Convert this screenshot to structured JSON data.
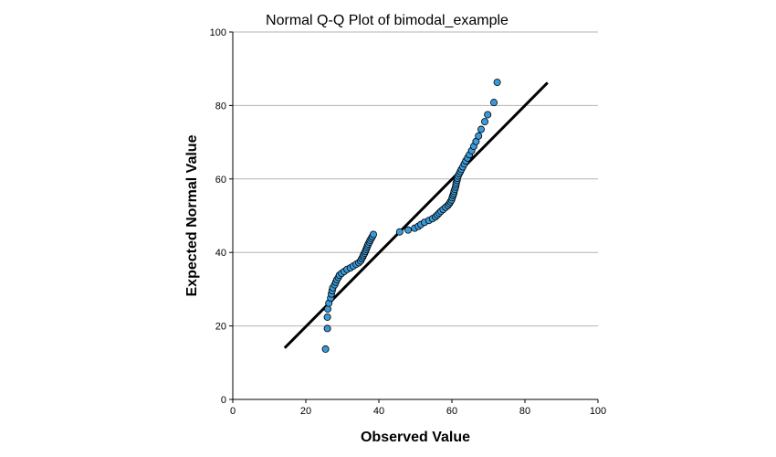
{
  "chart_data": {
    "type": "scatter",
    "title": "Normal Q-Q Plot of bimodal_example",
    "xlabel": "Observed Value",
    "ylabel": "Expected Normal Value",
    "xlim": [
      0,
      100
    ],
    "ylim": [
      0,
      100
    ],
    "xticks": [
      "0",
      "20",
      "40",
      "60",
      "80",
      "100"
    ],
    "yticks": [
      "0",
      "20",
      "40",
      "60",
      "80",
      "100"
    ],
    "grid": "horizontal",
    "colors": {
      "marker_fill": "#3a9ad9",
      "marker_stroke": "#000000",
      "reference_line": "#000000",
      "grid": "#b4b4b4",
      "axis": "#000000"
    },
    "reference_line": {
      "from": [
        14.2,
        14.0
      ],
      "to": [
        86.2,
        86.2
      ]
    },
    "points": [
      [
        25.4,
        13.7
      ],
      [
        25.9,
        19.3
      ],
      [
        25.9,
        22.4
      ],
      [
        26.0,
        24.6
      ],
      [
        26.3,
        26.2
      ],
      [
        26.8,
        27.6
      ],
      [
        27.0,
        28.7
      ],
      [
        27.2,
        29.6
      ],
      [
        27.4,
        30.4
      ],
      [
        27.9,
        31.2
      ],
      [
        28.2,
        31.9
      ],
      [
        28.5,
        32.6
      ],
      [
        28.9,
        33.2
      ],
      [
        29.2,
        33.8
      ],
      [
        29.8,
        34.3
      ],
      [
        30.5,
        34.8
      ],
      [
        31.3,
        35.4
      ],
      [
        32.2,
        35.8
      ],
      [
        33.0,
        36.3
      ],
      [
        33.8,
        36.8
      ],
      [
        34.5,
        37.2
      ],
      [
        35.0,
        37.7
      ],
      [
        35.3,
        38.3
      ],
      [
        35.6,
        38.8
      ],
      [
        35.8,
        39.3
      ],
      [
        36.1,
        39.8
      ],
      [
        36.3,
        40.3
      ],
      [
        36.5,
        40.8
      ],
      [
        36.7,
        41.3
      ],
      [
        36.9,
        41.8
      ],
      [
        37.1,
        42.3
      ],
      [
        37.4,
        42.8
      ],
      [
        37.6,
        43.3
      ],
      [
        37.9,
        43.8
      ],
      [
        38.2,
        44.3
      ],
      [
        38.5,
        44.9
      ],
      [
        45.7,
        45.6
      ],
      [
        48.0,
        46.1
      ],
      [
        49.8,
        46.6
      ],
      [
        50.8,
        47.1
      ],
      [
        51.5,
        47.6
      ],
      [
        52.5,
        48.2
      ],
      [
        53.7,
        48.7
      ],
      [
        54.7,
        49.2
      ],
      [
        55.5,
        49.7
      ],
      [
        56.0,
        50.2
      ],
      [
        56.5,
        50.7
      ],
      [
        57.0,
        51.2
      ],
      [
        57.6,
        51.7
      ],
      [
        58.3,
        52.3
      ],
      [
        58.9,
        52.8
      ],
      [
        59.3,
        53.3
      ],
      [
        59.6,
        53.8
      ],
      [
        59.9,
        54.3
      ],
      [
        60.1,
        54.9
      ],
      [
        60.3,
        55.5
      ],
      [
        60.5,
        56.0
      ],
      [
        60.6,
        56.6
      ],
      [
        60.8,
        57.2
      ],
      [
        61.0,
        57.8
      ],
      [
        61.1,
        58.4
      ],
      [
        61.2,
        59.0
      ],
      [
        61.4,
        59.6
      ],
      [
        61.5,
        60.2
      ],
      [
        61.7,
        60.8
      ],
      [
        62.0,
        61.4
      ],
      [
        62.3,
        62.0
      ],
      [
        62.6,
        62.6
      ],
      [
        63.0,
        63.3
      ],
      [
        63.4,
        64.1
      ],
      [
        63.8,
        64.9
      ],
      [
        64.3,
        65.7
      ],
      [
        64.8,
        66.6
      ],
      [
        65.4,
        67.7
      ],
      [
        66.0,
        68.9
      ],
      [
        66.6,
        70.2
      ],
      [
        67.3,
        71.7
      ],
      [
        68.0,
        73.5
      ],
      [
        69.0,
        75.6
      ],
      [
        69.8,
        77.5
      ],
      [
        71.5,
        80.8
      ],
      [
        72.4,
        86.3
      ]
    ]
  }
}
